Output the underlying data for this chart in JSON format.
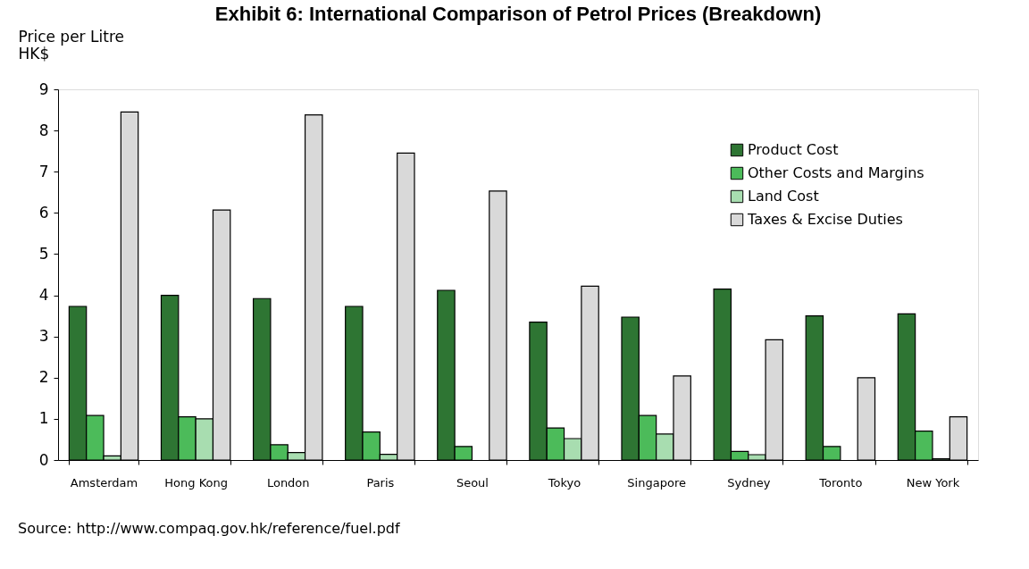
{
  "chart_data": {
    "type": "bar",
    "title": "Exhibit 6: International Comparison of Petrol Prices (Breakdown)",
    "ylabel": "Price per Litre\nHK$",
    "categories": [
      "Amsterdam",
      "Hong Kong",
      "London",
      "Paris",
      "Seoul",
      "Tokyo",
      "Singapore",
      "Sydney",
      "Toronto",
      "New York"
    ],
    "series": [
      {
        "name": "Product Cost",
        "color": "#2e7533",
        "values": [
          3.73,
          4.0,
          3.92,
          3.73,
          4.12,
          3.35,
          3.47,
          4.15,
          3.5,
          3.55
        ]
      },
      {
        "name": "Other Costs and Margins",
        "color": "#4cbb5a",
        "values": [
          1.08,
          1.05,
          0.37,
          0.68,
          0.33,
          0.78,
          1.08,
          0.21,
          0.33,
          0.7
        ]
      },
      {
        "name": "Land Cost",
        "color": "#a8ddb0",
        "values": [
          0.1,
          1.0,
          0.18,
          0.14,
          null,
          0.52,
          0.63,
          0.13,
          null,
          0.03
        ]
      },
      {
        "name": "Taxes & Excise Duties",
        "color": "#d9d9d9",
        "values": [
          8.45,
          6.07,
          8.38,
          7.45,
          6.53,
          4.22,
          2.04,
          2.92,
          2.0,
          1.05
        ]
      }
    ],
    "ylim": [
      0,
      9
    ],
    "yticks": [
      0,
      1,
      2,
      3,
      4,
      5,
      6,
      7,
      8,
      9
    ],
    "grid": false,
    "legend": "top right",
    "annotations": [
      "Source: http://www.compaq.gov.hk/reference/fuel.pdf"
    ]
  }
}
